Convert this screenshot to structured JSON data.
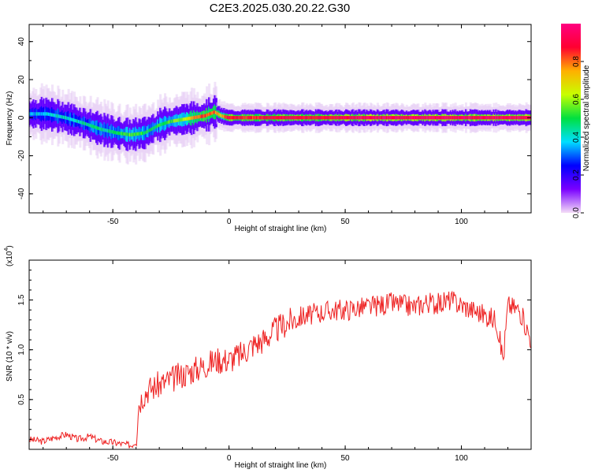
{
  "title": "C2E3.2025.030.20.22.G30",
  "chart_data": [
    {
      "type": "heatmap",
      "title": "C2E3.2025.030.20.22.G30",
      "xlabel": "Height of straight line (km)",
      "ylabel": "Frequency (Hz)",
      "xlim": [
        -86,
        130
      ],
      "ylim": [
        -50,
        49
      ],
      "xticks": [
        "-50",
        "0",
        "50",
        "100"
      ],
      "yticks": [
        "40",
        "20",
        "0",
        "-20",
        "-40"
      ],
      "colorbar": {
        "label": "Normalized spectral amplitude",
        "range": [
          0,
          1
        ],
        "ticks": [
          "0.0",
          "0.2",
          "0.4",
          "0.6",
          "0.8"
        ],
        "colors": [
          "#f4ddf7",
          "#7a00ff",
          "#0000ff",
          "#00dfff",
          "#00e040",
          "#c8ff00",
          "#ffb000",
          "#ff0030",
          "#ff0080"
        ]
      },
      "ridge": {
        "height_km": [
          -85,
          -78,
          -70,
          -62,
          -55,
          -48,
          -42,
          -36,
          -30,
          -25,
          -20,
          -15,
          -10,
          -6,
          -3,
          0,
          10,
          20,
          30,
          40,
          50,
          60,
          70,
          80,
          90,
          100,
          110,
          120,
          130
        ],
        "frequency_hz": [
          2,
          2,
          0,
          -3,
          -6,
          -8,
          -9,
          -8,
          -4,
          -2,
          -1,
          0,
          1,
          3,
          1,
          0,
          0,
          0,
          0,
          0,
          0,
          0,
          0,
          0,
          0,
          0,
          0,
          0,
          0
        ],
        "amplitude": [
          0.35,
          0.4,
          0.4,
          0.45,
          0.45,
          0.5,
          0.55,
          0.5,
          0.5,
          0.55,
          0.6,
          0.75,
          0.85,
          0.8,
          0.7,
          0.9,
          0.85,
          0.9,
          0.9,
          0.88,
          0.92,
          0.95,
          0.95,
          0.95,
          0.95,
          0.95,
          0.95,
          0.95,
          0.95
        ]
      }
    },
    {
      "type": "line",
      "xlabel": "Height of straight line (km)",
      "ylabel": "SNR (10 * v/v)",
      "yexponent": "(x10",
      "yexponent_power": "4",
      "xlim": [
        -86,
        130
      ],
      "ylim": [
        0,
        19000
      ],
      "xticks": [
        "-50",
        "0",
        "50",
        "100"
      ],
      "yticks": [
        "0.5",
        "1.0",
        "1.5"
      ],
      "series": [
        {
          "color": "#ee2222",
          "x": [
            -86,
            -80,
            -75,
            -70,
            -65,
            -60,
            -55,
            -50,
            -45,
            -42,
            -40,
            -39,
            -37,
            -35,
            -30,
            -25,
            -20,
            -15,
            -10,
            -5,
            0,
            5,
            10,
            15,
            20,
            25,
            30,
            35,
            40,
            45,
            50,
            55,
            60,
            65,
            70,
            75,
            80,
            85,
            90,
            95,
            100,
            105,
            110,
            115,
            118,
            120,
            125,
            130
          ],
          "y": [
            1000,
            800,
            1200,
            1500,
            1000,
            1300,
            800,
            700,
            500,
            400,
            800,
            4500,
            5500,
            6000,
            6500,
            7000,
            7500,
            8000,
            8500,
            9000,
            9000,
            9500,
            10500,
            11000,
            12000,
            12700,
            13300,
            13500,
            13800,
            14000,
            14000,
            14200,
            14300,
            14500,
            14700,
            14500,
            14300,
            14800,
            14600,
            15000,
            14500,
            14000,
            13500,
            13000,
            9000,
            14500,
            14000,
            11000
          ]
        }
      ]
    }
  ]
}
